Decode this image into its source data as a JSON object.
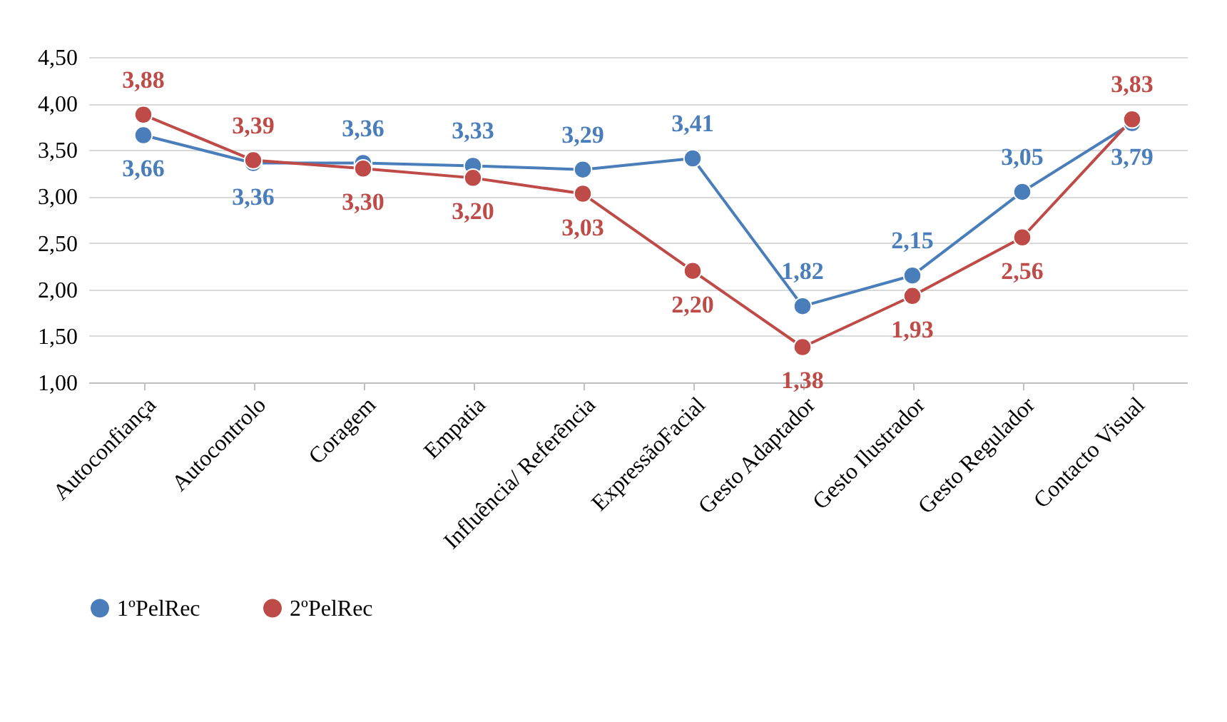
{
  "chart_data": {
    "type": "line",
    "categories": [
      "Autoconfiança",
      "Autocontrolo",
      "Coragem",
      "Empatia",
      "Influência/ Referência",
      "ExpressãoFacial",
      "Gesto Adaptador",
      "Gesto Ilustrador",
      "Gesto Regulador",
      "Contacto Visual"
    ],
    "series": [
      {
        "name": "1ºPelRec",
        "color": "#4a7ebb",
        "values": [
          3.66,
          3.36,
          3.36,
          3.33,
          3.29,
          3.41,
          1.82,
          2.15,
          3.05,
          3.79
        ],
        "value_labels": [
          "3,66",
          "3,36",
          "3,36",
          "3,33",
          "3,29",
          "3,41",
          "1,82",
          "2,15",
          "3,05",
          "3,79"
        ]
      },
      {
        "name": "2ºPelRec",
        "color": "#be4b48",
        "values": [
          3.88,
          3.39,
          3.3,
          3.2,
          3.03,
          2.2,
          1.38,
          1.93,
          2.56,
          3.83
        ],
        "value_labels": [
          "3,88",
          "3,39",
          "3,30",
          "3,20",
          "3,03",
          "2,20",
          "1,38",
          "1,93",
          "2,56",
          "3,83"
        ]
      }
    ],
    "ylim": [
      1,
      4.5
    ],
    "yticks": [
      {
        "value": 1,
        "label": "1,00"
      },
      {
        "value": 1.5,
        "label": "1,50"
      },
      {
        "value": 2,
        "label": "2,00"
      },
      {
        "value": 2.5,
        "label": "2,50"
      },
      {
        "value": 3,
        "label": "3,00"
      },
      {
        "value": 3.5,
        "label": "3,50"
      },
      {
        "value": 4,
        "label": "4,00"
      },
      {
        "value": 4.5,
        "label": "4,50"
      }
    ],
    "grid": "y",
    "legend": "bottom",
    "marker": "circle",
    "line_style": "solid"
  }
}
